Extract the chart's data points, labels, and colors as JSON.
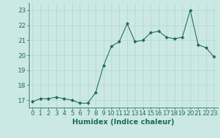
{
  "x": [
    0,
    1,
    2,
    3,
    4,
    5,
    6,
    7,
    8,
    9,
    10,
    11,
    12,
    13,
    14,
    15,
    16,
    17,
    18,
    19,
    20,
    21,
    22,
    23
  ],
  "y": [
    16.9,
    17.1,
    17.1,
    17.2,
    17.1,
    17.0,
    16.8,
    16.8,
    17.5,
    19.3,
    20.6,
    20.9,
    22.1,
    20.9,
    21.0,
    21.5,
    21.6,
    21.2,
    21.1,
    21.2,
    23.0,
    20.7,
    20.5,
    19.9
  ],
  "xlabel": "Humidex (Indice chaleur)",
  "ylim": [
    16.5,
    23.5
  ],
  "xlim": [
    -0.5,
    23.5
  ],
  "yticks": [
    17,
    18,
    19,
    20,
    21,
    22,
    23
  ],
  "xticks": [
    0,
    1,
    2,
    3,
    4,
    5,
    6,
    7,
    8,
    9,
    10,
    11,
    12,
    13,
    14,
    15,
    16,
    17,
    18,
    19,
    20,
    21,
    22,
    23
  ],
  "line_color": "#1a6b5a",
  "marker_color": "#1a6b5a",
  "bg_color": "#cce8e4",
  "grid_color": "#b0d4ce",
  "label_color": "#1a6b5a",
  "tick_color": "#1a6b5a",
  "axis_fontsize": 7.5,
  "tick_fontsize": 6.5
}
